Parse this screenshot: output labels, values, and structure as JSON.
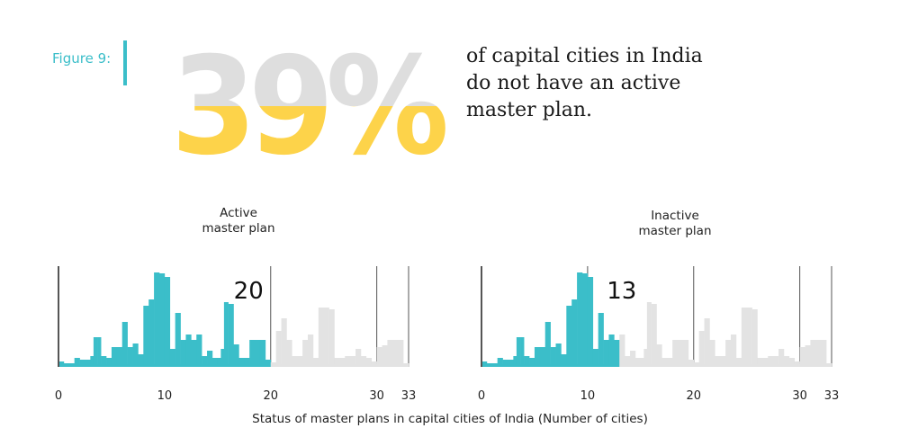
{
  "figure_label": "Figure 9:",
  "big_stat": "39%",
  "big_stat_value": 39,
  "headline": "of capital cities in India\ndo not have an active\nmaster plan.",
  "colors": {
    "accent": "#3bbec9",
    "stat_bottom": "#fdd34a",
    "stat_top": "#dedede",
    "muted": "#e3e3e3",
    "axis": "#555555"
  },
  "chart_data": [
    {
      "type": "bar",
      "title": "Active\nmaster plan",
      "highlight_count": 20,
      "total": 33,
      "value_label": "20",
      "xlim": [
        0,
        33
      ],
      "ticks": [
        {
          "value": 0,
          "label": "0"
        },
        {
          "value": 10,
          "label": "10"
        },
        {
          "value": 20,
          "label": "20"
        },
        {
          "value": 30,
          "label": "30"
        },
        {
          "value": 33,
          "label": "33"
        }
      ],
      "gridlines": [
        20,
        30,
        33
      ]
    },
    {
      "type": "bar",
      "title": "Inactive\nmaster plan",
      "highlight_count": 13,
      "total": 33,
      "value_label": "13",
      "xlim": [
        0,
        33
      ],
      "ticks": [
        {
          "value": 0,
          "label": "0"
        },
        {
          "value": 10,
          "label": "10"
        },
        {
          "value": 20,
          "label": "20"
        },
        {
          "value": 30,
          "label": "30"
        },
        {
          "value": 33,
          "label": "33"
        }
      ],
      "gridlines": [
        10,
        20,
        30,
        33
      ]
    }
  ],
  "xlabel": "Status of master plans in capital cities of India (Number of cities)"
}
